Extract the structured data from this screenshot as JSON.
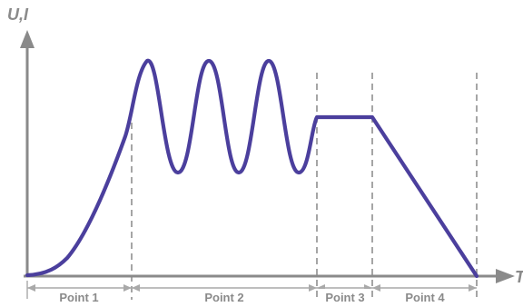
{
  "axes": {
    "y_label": "U,I",
    "x_label": "T"
  },
  "segments": [
    {
      "label": "Point 1"
    },
    {
      "label": "Point 2"
    },
    {
      "label": "Point 3"
    },
    {
      "label": "Point 4"
    }
  ],
  "colors": {
    "signal": "#4b3f9d",
    "axis": "#8a8a8a",
    "guide": "#8f8f8f"
  }
}
